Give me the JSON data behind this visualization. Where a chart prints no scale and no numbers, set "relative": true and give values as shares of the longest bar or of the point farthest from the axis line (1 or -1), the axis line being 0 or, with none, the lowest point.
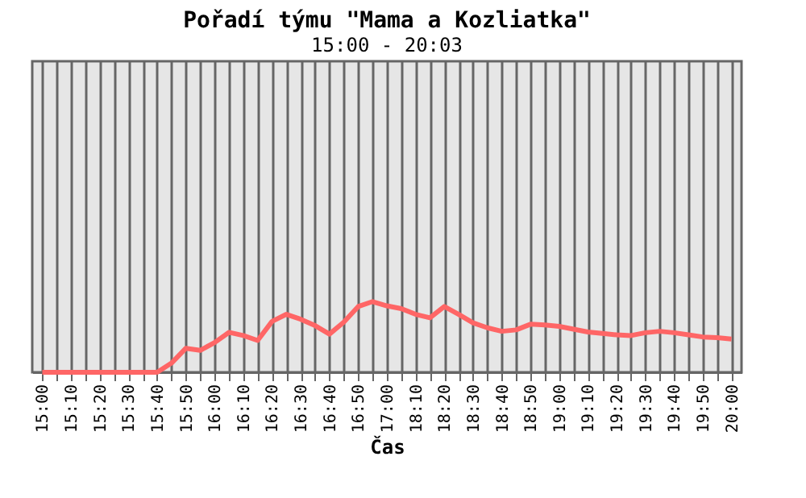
{
  "chart_data": {
    "type": "line",
    "title": "Pořadí týmu \"Mama a Kozliatka\"",
    "subtitle": "15:00 - 20:03",
    "xlabel": "Čas",
    "categories": [
      "15:00",
      null,
      "15:10",
      null,
      "15:20",
      null,
      "15:30",
      null,
      "15:40",
      null,
      "15:50",
      null,
      "16:00",
      null,
      "16:10",
      null,
      "16:20",
      null,
      "16:30",
      null,
      "16:40",
      null,
      "16:50",
      null,
      "17:00",
      null,
      "18:10",
      null,
      "18:20",
      null,
      "18:30",
      null,
      "18:40",
      null,
      "18:50",
      null,
      "19:00",
      null,
      "19:10",
      null,
      "19:20",
      null,
      "19:30",
      null,
      "19:40",
      null,
      "19:50",
      null,
      "20:00"
    ],
    "series": [
      {
        "color": "#ff6666",
        "values": [
          0,
          0,
          0,
          0,
          0,
          0,
          0,
          0,
          0,
          0.13,
          0.34,
          0.31,
          0.42,
          0.565,
          0.52,
          0.45,
          0.72,
          0.82,
          0.75,
          0.66,
          0.54,
          0.71,
          0.93,
          1.0,
          0.94,
          0.9,
          0.82,
          0.77,
          0.93,
          0.82,
          0.7,
          0.63,
          0.58,
          0.6,
          0.68,
          0.67,
          0.65,
          0.61,
          0.57,
          0.55,
          0.53,
          0.52,
          0.56,
          0.58,
          0.56,
          0.53,
          0.5,
          0.49,
          0.47
        ]
      }
    ],
    "relative": true,
    "grid": "x",
    "marker": "none",
    "line_style": "solid"
  }
}
